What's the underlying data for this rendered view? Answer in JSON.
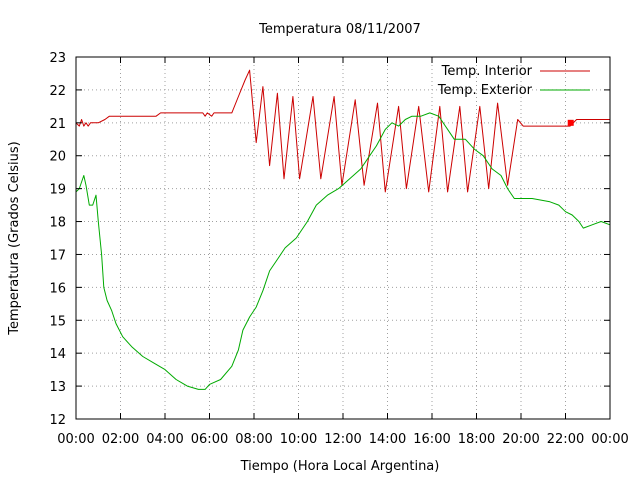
{
  "chart_data": {
    "type": "line",
    "title": "Temperatura 08/11/2007",
    "xlabel": "Tiempo (Hora Local Argentina)",
    "ylabel": "Temperatura (Grados Celsius)",
    "xlim": [
      0,
      24
    ],
    "ylim": [
      12,
      23
    ],
    "x_tick_values": [
      0,
      2,
      4,
      6,
      8,
      10,
      12,
      14,
      16,
      18,
      20,
      22,
      24
    ],
    "x_tick_labels": [
      "00:00",
      "02:00",
      "04:00",
      "06:00",
      "08:00",
      "10:00",
      "12:00",
      "14:00",
      "16:00",
      "18:00",
      "20:00",
      "22:00",
      "00:00"
    ],
    "y_tick_values": [
      12,
      13,
      14,
      15,
      16,
      17,
      18,
      19,
      20,
      21,
      22,
      23
    ],
    "y_tick_labels": [
      "12",
      "13",
      "14",
      "15",
      "16",
      "17",
      "18",
      "19",
      "20",
      "21",
      "22",
      "23"
    ],
    "grid": true,
    "legend_position": "top-right",
    "series": [
      {
        "name": "Temp. Interior",
        "color": "#cc0000",
        "points": [
          [
            0.0,
            21.0
          ],
          [
            0.15,
            20.9
          ],
          [
            0.25,
            21.1
          ],
          [
            0.35,
            20.9
          ],
          [
            0.45,
            21.0
          ],
          [
            0.55,
            20.9
          ],
          [
            0.65,
            21.0
          ],
          [
            1.0,
            21.0
          ],
          [
            1.3,
            21.1
          ],
          [
            1.5,
            21.2
          ],
          [
            3.6,
            21.2
          ],
          [
            3.8,
            21.3
          ],
          [
            5.7,
            21.3
          ],
          [
            5.8,
            21.2
          ],
          [
            5.9,
            21.3
          ],
          [
            6.1,
            21.2
          ],
          [
            6.2,
            21.3
          ],
          [
            7.0,
            21.3
          ],
          [
            7.3,
            21.8
          ],
          [
            7.6,
            22.3
          ],
          [
            7.8,
            22.6
          ],
          [
            8.1,
            20.4
          ],
          [
            8.4,
            22.1
          ],
          [
            8.7,
            19.7
          ],
          [
            9.05,
            21.9
          ],
          [
            9.35,
            19.3
          ],
          [
            9.75,
            21.8
          ],
          [
            10.05,
            19.3
          ],
          [
            10.65,
            21.8
          ],
          [
            11.0,
            19.3
          ],
          [
            11.6,
            21.8
          ],
          [
            11.95,
            19.1
          ],
          [
            12.55,
            21.7
          ],
          [
            12.95,
            19.1
          ],
          [
            13.55,
            21.6
          ],
          [
            13.9,
            18.9
          ],
          [
            14.5,
            21.5
          ],
          [
            14.85,
            19.0
          ],
          [
            15.4,
            21.5
          ],
          [
            15.85,
            18.9
          ],
          [
            16.35,
            21.5
          ],
          [
            16.7,
            18.9
          ],
          [
            17.25,
            21.5
          ],
          [
            17.6,
            18.9
          ],
          [
            18.15,
            21.5
          ],
          [
            18.55,
            19.0
          ],
          [
            18.95,
            21.6
          ],
          [
            19.4,
            19.1
          ],
          [
            19.85,
            21.1
          ],
          [
            20.1,
            20.9
          ],
          [
            22.2,
            20.9
          ],
          [
            22.5,
            21.1
          ],
          [
            24.0,
            21.1
          ]
        ]
      },
      {
        "name": "Temp. Exterior",
        "color": "#00aa00",
        "points": [
          [
            0.0,
            18.9
          ],
          [
            0.15,
            19.0
          ],
          [
            0.35,
            19.4
          ],
          [
            0.45,
            19.1
          ],
          [
            0.6,
            18.5
          ],
          [
            0.75,
            18.5
          ],
          [
            0.9,
            18.8
          ],
          [
            1.0,
            18.0
          ],
          [
            1.15,
            17.0
          ],
          [
            1.25,
            16.0
          ],
          [
            1.4,
            15.6
          ],
          [
            1.6,
            15.3
          ],
          [
            1.8,
            14.9
          ],
          [
            2.1,
            14.5
          ],
          [
            2.5,
            14.2
          ],
          [
            3.0,
            13.9
          ],
          [
            3.5,
            13.7
          ],
          [
            4.0,
            13.5
          ],
          [
            4.5,
            13.2
          ],
          [
            5.0,
            13.0
          ],
          [
            5.5,
            12.9
          ],
          [
            5.8,
            12.9
          ],
          [
            6.0,
            13.05
          ],
          [
            6.5,
            13.2
          ],
          [
            7.0,
            13.6
          ],
          [
            7.3,
            14.1
          ],
          [
            7.5,
            14.7
          ],
          [
            7.8,
            15.1
          ],
          [
            8.1,
            15.4
          ],
          [
            8.4,
            15.9
          ],
          [
            8.7,
            16.5
          ],
          [
            9.0,
            16.8
          ],
          [
            9.4,
            17.2
          ],
          [
            9.9,
            17.5
          ],
          [
            10.4,
            18.0
          ],
          [
            10.8,
            18.5
          ],
          [
            11.3,
            18.8
          ],
          [
            11.8,
            19.0
          ],
          [
            12.3,
            19.3
          ],
          [
            12.8,
            19.6
          ],
          [
            13.2,
            20.0
          ],
          [
            13.5,
            20.3
          ],
          [
            13.9,
            20.8
          ],
          [
            14.2,
            21.0
          ],
          [
            14.5,
            20.9
          ],
          [
            14.8,
            21.1
          ],
          [
            15.1,
            21.2
          ],
          [
            15.5,
            21.2
          ],
          [
            15.9,
            21.3
          ],
          [
            16.3,
            21.2
          ],
          [
            16.6,
            20.9
          ],
          [
            17.0,
            20.5
          ],
          [
            17.5,
            20.5
          ],
          [
            17.9,
            20.2
          ],
          [
            18.3,
            20.0
          ],
          [
            18.7,
            19.6
          ],
          [
            19.1,
            19.4
          ],
          [
            19.4,
            19.0
          ],
          [
            19.7,
            18.7
          ],
          [
            20.5,
            18.7
          ],
          [
            21.3,
            18.6
          ],
          [
            21.7,
            18.5
          ],
          [
            22.0,
            18.3
          ],
          [
            22.3,
            18.2
          ],
          [
            22.6,
            18.0
          ],
          [
            22.8,
            17.8
          ],
          [
            23.2,
            17.9
          ],
          [
            23.6,
            18.0
          ],
          [
            24.0,
            17.9
          ]
        ]
      }
    ],
    "marker": {
      "x": 22.1,
      "y": 21.0,
      "color": "#ff0000"
    }
  }
}
